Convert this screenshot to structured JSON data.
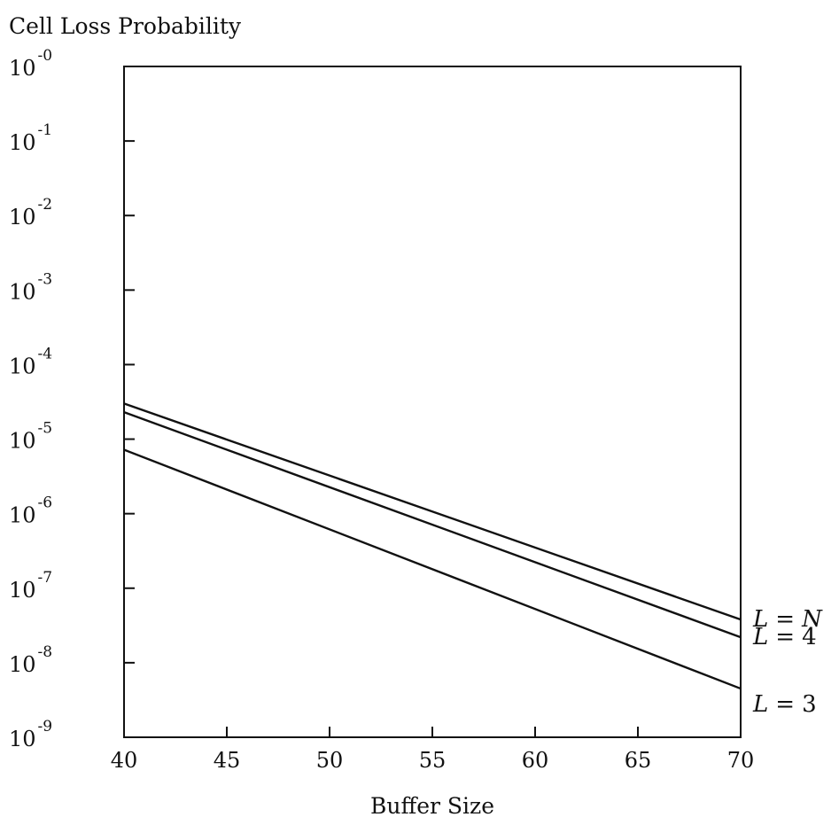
{
  "chart_data": {
    "type": "line",
    "title": "",
    "ylabel": "Cell Loss Probability",
    "xlabel": "Buffer Size",
    "yscale": "log",
    "xlim": [
      40,
      70
    ],
    "ylim": [
      1e-09,
      1
    ],
    "xticks": [
      40,
      45,
      50,
      55,
      60,
      65,
      70
    ],
    "yticks": [
      {
        "base": "10",
        "exp": "-0"
      },
      {
        "base": "10",
        "exp": "-1"
      },
      {
        "base": "10",
        "exp": "-2"
      },
      {
        "base": "10",
        "exp": "-3"
      },
      {
        "base": "10",
        "exp": "-4"
      },
      {
        "base": "10",
        "exp": "-5"
      },
      {
        "base": "10",
        "exp": "-6"
      },
      {
        "base": "10",
        "exp": "-7"
      },
      {
        "base": "10",
        "exp": "-8"
      },
      {
        "base": "10",
        "exp": "-9"
      }
    ],
    "grid": false,
    "series": [
      {
        "name": "L = N",
        "label_var": "L",
        "label_op": "=",
        "label_val": "N",
        "x": [
          40,
          70
        ],
        "y": [
          3e-05,
          3.8e-08
        ]
      },
      {
        "name": "L = 4",
        "label_var": "L",
        "label_op": "=",
        "label_val": "4",
        "x": [
          40,
          70
        ],
        "y": [
          2.3e-05,
          2.2e-08
        ]
      },
      {
        "name": "L = 3",
        "label_var": "L",
        "label_op": "=",
        "label_val": "3",
        "x": [
          40,
          70
        ],
        "y": [
          7.2e-06,
          4.5e-09
        ]
      }
    ]
  }
}
